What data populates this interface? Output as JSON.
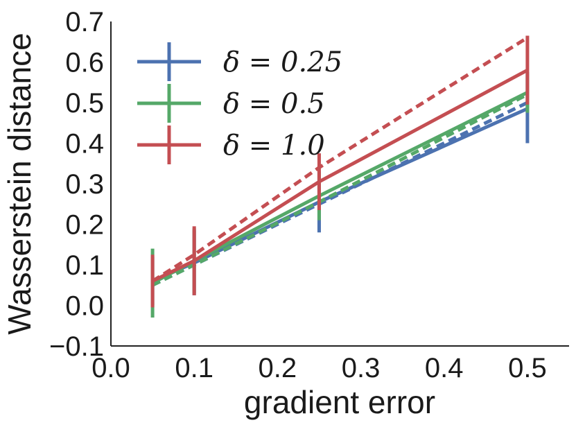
{
  "chart_data": {
    "type": "line",
    "xlabel": "gradient error",
    "ylabel": "Wasserstein distance",
    "xlim": [
      0.0,
      0.55
    ],
    "ylim": [
      -0.1,
      0.7
    ],
    "x_ticks": [
      0.0,
      0.1,
      0.2,
      0.3,
      0.4,
      0.5
    ],
    "x_tick_labels": [
      "0.0",
      "0.1",
      "0.2",
      "0.3",
      "0.4",
      "0.5"
    ],
    "y_ticks": [
      -0.1,
      0.0,
      0.1,
      0.2,
      0.3,
      0.4,
      0.5,
      0.6,
      0.7
    ],
    "y_tick_labels": [
      "−0.1",
      "0.0",
      "0.1",
      "0.2",
      "0.3",
      "0.4",
      "0.5",
      "0.6",
      "0.7"
    ],
    "x": [
      0.05,
      0.1,
      0.25,
      0.5
    ],
    "grid": false,
    "legend_position": "top-left",
    "series": [
      {
        "name": "δ = 0.25",
        "color": "#4c72b0",
        "values": [
          0.06,
          0.105,
          0.255,
          0.485
        ],
        "yerr": [
          0.06,
          0.08,
          0.075,
          0.085
        ],
        "reference": [
          0.05,
          0.1,
          0.25,
          0.5
        ]
      },
      {
        "name": "δ = 0.5",
        "color": "#55a868",
        "values": [
          0.055,
          0.11,
          0.27,
          0.525
        ],
        "yerr": [
          0.085,
          0.08,
          0.06,
          0.05
        ],
        "reference": [
          0.05,
          0.1,
          0.255,
          0.52
        ]
      },
      {
        "name": "δ = 1.0",
        "color": "#c44e52",
        "values": [
          0.06,
          0.11,
          0.305,
          0.58
        ],
        "yerr": [
          0.065,
          0.085,
          0.07,
          0.085
        ],
        "reference": [
          0.06,
          0.125,
          0.34,
          0.66
        ]
      }
    ]
  }
}
